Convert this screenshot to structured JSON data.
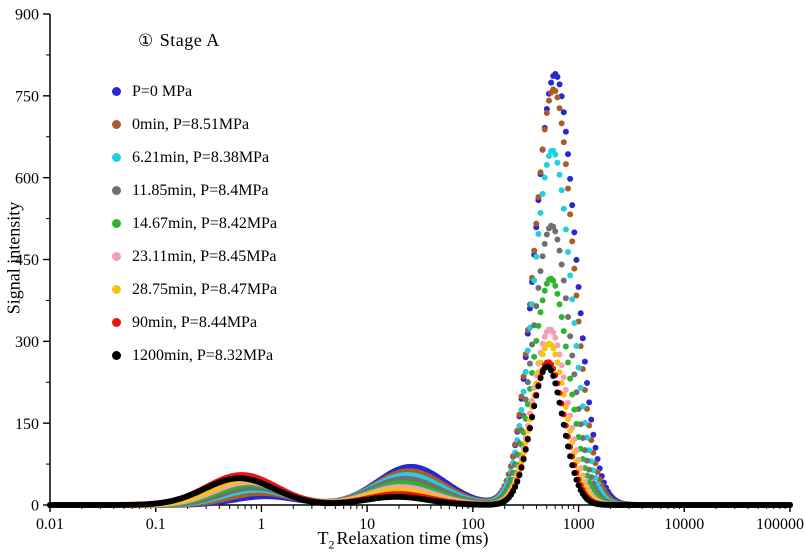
{
  "chart_data": {
    "type": "scatter",
    "title_mark": "①",
    "title_text": "Stage A",
    "ylabel": "Signal intensity",
    "xlabel_t": "T",
    "xlabel_sub": "2",
    "xlabel_rest": "Relaxation time (ms)",
    "x_scale": "log",
    "xlim": [
      0.01,
      100000
    ],
    "ylim": [
      0,
      900
    ],
    "y_ticks": [
      {
        "v": 0,
        "label": "0"
      },
      {
        "v": 150,
        "label": "150"
      },
      {
        "v": 300,
        "label": "300"
      },
      {
        "v": 450,
        "label": "450"
      },
      {
        "v": 600,
        "label": "600"
      },
      {
        "v": 750,
        "label": "750"
      },
      {
        "v": 900,
        "label": "900"
      }
    ],
    "x_ticks": [
      {
        "v": 0.01,
        "label": "0.01"
      },
      {
        "v": 0.1,
        "label": "0.1"
      },
      {
        "v": 1,
        "label": "1"
      },
      {
        "v": 10,
        "label": "10"
      },
      {
        "v": 100,
        "label": "100"
      },
      {
        "v": 1000,
        "label": "1000"
      },
      {
        "v": 10000,
        "label": "10000"
      },
      {
        "v": 100000,
        "label": "100000"
      }
    ],
    "points_per_decade": 50,
    "dot_radius": 3,
    "series": [
      {
        "name": "P=0 MPa",
        "color": "#2727d3",
        "peaks": [
          {
            "c": 1.1,
            "a": 16,
            "w": 0.3
          },
          {
            "c": 26,
            "a": 70,
            "w": 0.32
          },
          {
            "c": 600,
            "a": 790,
            "w": 0.19
          }
        ]
      },
      {
        "name": "0min,  P=8.51MPa",
        "color": "#ab5c2b",
        "peaks": [
          {
            "c": 1.0,
            "a": 22,
            "w": 0.3
          },
          {
            "c": 25,
            "a": 62,
            "w": 0.32
          },
          {
            "c": 580,
            "a": 762,
            "w": 0.185
          }
        ]
      },
      {
        "name": "6.21min,  P=8.38MPa",
        "color": "#1fd0e0",
        "peaks": [
          {
            "c": 0.9,
            "a": 28,
            "w": 0.31
          },
          {
            "c": 24,
            "a": 55,
            "w": 0.32
          },
          {
            "c": 565,
            "a": 650,
            "w": 0.18
          }
        ]
      },
      {
        "name": "11.85min,  P=8.4MPa",
        "color": "#707070",
        "peaks": [
          {
            "c": 0.85,
            "a": 32,
            "w": 0.31
          },
          {
            "c": 23,
            "a": 48,
            "w": 0.32
          },
          {
            "c": 555,
            "a": 512,
            "w": 0.175
          }
        ]
      },
      {
        "name": "14.67min,  P=8.42MPa",
        "color": "#2eb52e",
        "peaks": [
          {
            "c": 0.8,
            "a": 38,
            "w": 0.32
          },
          {
            "c": 22,
            "a": 40,
            "w": 0.31
          },
          {
            "c": 545,
            "a": 415,
            "w": 0.17
          }
        ]
      },
      {
        "name": "23.11min,  P=8.45MPa",
        "color": "#f59fb5",
        "peaks": [
          {
            "c": 0.75,
            "a": 42,
            "w": 0.32
          },
          {
            "c": 21,
            "a": 33,
            "w": 0.31
          },
          {
            "c": 535,
            "a": 322,
            "w": 0.165
          }
        ]
      },
      {
        "name": "28.75min,  P=8.47MPa",
        "color": "#f5c514",
        "peaks": [
          {
            "c": 0.7,
            "a": 46,
            "w": 0.32
          },
          {
            "c": 20,
            "a": 27,
            "w": 0.3
          },
          {
            "c": 525,
            "a": 296,
            "w": 0.16
          }
        ]
      },
      {
        "name": "90min,  P=8.44MPa",
        "color": "#ee1111",
        "peaks": [
          {
            "c": 0.65,
            "a": 55,
            "w": 0.33
          },
          {
            "c": 20,
            "a": 20,
            "w": 0.3
          },
          {
            "c": 515,
            "a": 262,
            "w": 0.155
          }
        ]
      },
      {
        "name": "1200min,  P=8.32MPa",
        "color": "#000000",
        "peaks": [
          {
            "c": 0.62,
            "a": 49,
            "w": 0.33
          },
          {
            "c": 19,
            "a": 15,
            "w": 0.3
          },
          {
            "c": 505,
            "a": 254,
            "w": 0.15
          }
        ]
      }
    ]
  }
}
